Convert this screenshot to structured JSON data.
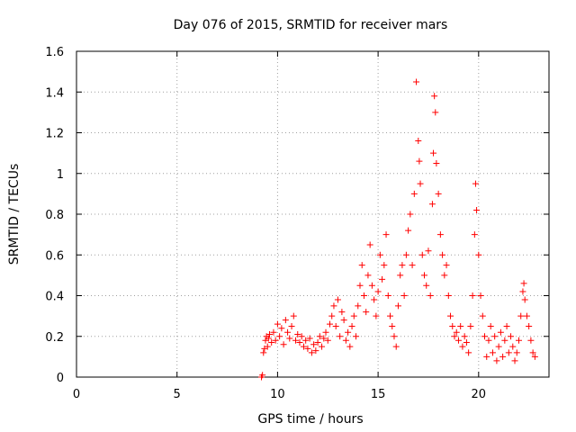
{
  "chart_data": {
    "type": "scatter",
    "title": "Day 076 of 2015, SRMTID for receiver mars",
    "xlabel": "GPS time / hours",
    "ylabel": "SRMTID / TECUs",
    "xlim": [
      0,
      23.5
    ],
    "ylim": [
      0,
      1.6
    ],
    "xticks": [
      0,
      5,
      10,
      15,
      20
    ],
    "xtick_labels": [
      "0",
      "5",
      "10",
      "15",
      "20"
    ],
    "yticks": [
      0,
      0.2,
      0.4,
      0.6,
      0.8,
      1.0,
      1.2,
      1.4,
      1.6
    ],
    "ytick_labels": [
      "0",
      "0.2",
      "0.4",
      "0.6",
      "0.8",
      "1",
      "1.2",
      "1.4",
      "1.6"
    ],
    "grid": true,
    "marker": "plus",
    "color": "#ff0000",
    "series": [
      {
        "name": "SRMTID",
        "points": [
          [
            9.2,
            0.0
          ],
          [
            9.25,
            0.01
          ],
          [
            9.3,
            0.12
          ],
          [
            9.35,
            0.14
          ],
          [
            9.4,
            0.18
          ],
          [
            9.45,
            0.2
          ],
          [
            9.5,
            0.15
          ],
          [
            9.55,
            0.19
          ],
          [
            9.6,
            0.21
          ],
          [
            9.7,
            0.17
          ],
          [
            9.8,
            0.22
          ],
          [
            9.9,
            0.18
          ],
          [
            10.0,
            0.26
          ],
          [
            10.1,
            0.2
          ],
          [
            10.2,
            0.24
          ],
          [
            10.3,
            0.16
          ],
          [
            10.4,
            0.28
          ],
          [
            10.5,
            0.22
          ],
          [
            10.6,
            0.19
          ],
          [
            10.7,
            0.25
          ],
          [
            10.8,
            0.3
          ],
          [
            10.9,
            0.18
          ],
          [
            11.0,
            0.21
          ],
          [
            11.1,
            0.17
          ],
          [
            11.2,
            0.2
          ],
          [
            11.3,
            0.15
          ],
          [
            11.4,
            0.18
          ],
          [
            11.5,
            0.14
          ],
          [
            11.6,
            0.19
          ],
          [
            11.7,
            0.12
          ],
          [
            11.8,
            0.16
          ],
          [
            11.9,
            0.13
          ],
          [
            12.0,
            0.17
          ],
          [
            12.1,
            0.2
          ],
          [
            12.2,
            0.15
          ],
          [
            12.3,
            0.19
          ],
          [
            12.4,
            0.22
          ],
          [
            12.5,
            0.18
          ],
          [
            12.6,
            0.26
          ],
          [
            12.7,
            0.3
          ],
          [
            12.8,
            0.35
          ],
          [
            12.9,
            0.25
          ],
          [
            13.0,
            0.38
          ],
          [
            13.1,
            0.2
          ],
          [
            13.2,
            0.32
          ],
          [
            13.3,
            0.28
          ],
          [
            13.4,
            0.18
          ],
          [
            13.5,
            0.22
          ],
          [
            13.6,
            0.15
          ],
          [
            13.7,
            0.25
          ],
          [
            13.8,
            0.3
          ],
          [
            13.9,
            0.2
          ],
          [
            14.0,
            0.35
          ],
          [
            14.1,
            0.45
          ],
          [
            14.2,
            0.55
          ],
          [
            14.3,
            0.4
          ],
          [
            14.4,
            0.32
          ],
          [
            14.5,
            0.5
          ],
          [
            14.6,
            0.65
          ],
          [
            14.7,
            0.45
          ],
          [
            14.8,
            0.38
          ],
          [
            14.9,
            0.3
          ],
          [
            15.0,
            0.42
          ],
          [
            15.1,
            0.6
          ],
          [
            15.2,
            0.48
          ],
          [
            15.3,
            0.55
          ],
          [
            15.4,
            0.7
          ],
          [
            15.5,
            0.4
          ],
          [
            15.6,
            0.3
          ],
          [
            15.7,
            0.25
          ],
          [
            15.8,
            0.2
          ],
          [
            15.9,
            0.15
          ],
          [
            16.0,
            0.35
          ],
          [
            16.1,
            0.5
          ],
          [
            16.2,
            0.55
          ],
          [
            16.3,
            0.4
          ],
          [
            16.4,
            0.6
          ],
          [
            16.5,
            0.72
          ],
          [
            16.6,
            0.8
          ],
          [
            16.7,
            0.55
          ],
          [
            16.8,
            0.9
          ],
          [
            16.9,
            1.45
          ],
          [
            17.0,
            1.16
          ],
          [
            17.05,
            1.06
          ],
          [
            17.1,
            0.95
          ],
          [
            17.2,
            0.6
          ],
          [
            17.3,
            0.5
          ],
          [
            17.4,
            0.45
          ],
          [
            17.5,
            0.62
          ],
          [
            17.6,
            0.4
          ],
          [
            17.7,
            0.85
          ],
          [
            17.75,
            1.1
          ],
          [
            17.8,
            1.38
          ],
          [
            17.85,
            1.3
          ],
          [
            17.9,
            1.05
          ],
          [
            18.0,
            0.9
          ],
          [
            18.1,
            0.7
          ],
          [
            18.2,
            0.6
          ],
          [
            18.3,
            0.5
          ],
          [
            18.4,
            0.55
          ],
          [
            18.5,
            0.4
          ],
          [
            18.6,
            0.3
          ],
          [
            18.7,
            0.25
          ],
          [
            18.8,
            0.2
          ],
          [
            18.9,
            0.22
          ],
          [
            19.0,
            0.18
          ],
          [
            19.1,
            0.25
          ],
          [
            19.2,
            0.15
          ],
          [
            19.3,
            0.2
          ],
          [
            19.4,
            0.17
          ],
          [
            19.5,
            0.12
          ],
          [
            19.6,
            0.25
          ],
          [
            19.7,
            0.4
          ],
          [
            19.8,
            0.7
          ],
          [
            19.85,
            0.95
          ],
          [
            19.9,
            0.82
          ],
          [
            20.0,
            0.6
          ],
          [
            20.1,
            0.4
          ],
          [
            20.2,
            0.3
          ],
          [
            20.3,
            0.2
          ],
          [
            20.4,
            0.1
          ],
          [
            20.5,
            0.18
          ],
          [
            20.6,
            0.25
          ],
          [
            20.7,
            0.12
          ],
          [
            20.8,
            0.2
          ],
          [
            20.9,
            0.08
          ],
          [
            21.0,
            0.15
          ],
          [
            21.1,
            0.22
          ],
          [
            21.2,
            0.1
          ],
          [
            21.3,
            0.18
          ],
          [
            21.4,
            0.25
          ],
          [
            21.5,
            0.12
          ],
          [
            21.6,
            0.2
          ],
          [
            21.7,
            0.15
          ],
          [
            21.8,
            0.08
          ],
          [
            21.9,
            0.12
          ],
          [
            22.0,
            0.18
          ],
          [
            22.1,
            0.3
          ],
          [
            22.2,
            0.42
          ],
          [
            22.25,
            0.46
          ],
          [
            22.3,
            0.38
          ],
          [
            22.4,
            0.3
          ],
          [
            22.5,
            0.25
          ],
          [
            22.6,
            0.18
          ],
          [
            22.7,
            0.12
          ],
          [
            22.8,
            0.1
          ]
        ]
      }
    ]
  }
}
